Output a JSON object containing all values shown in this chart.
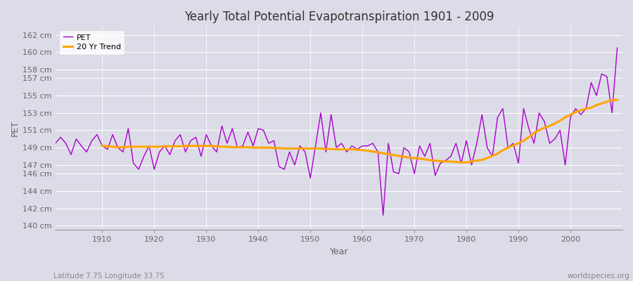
{
  "title": "Yearly Total Potential Evapotranspiration 1901 - 2009",
  "xlabel": "Year",
  "ylabel": "PET",
  "subtitle_left": "Latitude 7.75 Longitude 33.75",
  "subtitle_right": "worldspecies.org",
  "pet_color": "#aa00cc",
  "trend_color": "#FFA500",
  "background_color": "#dcdce8",
  "plot_bg_color": "#dcdce8",
  "ylim": [
    139.5,
    163
  ],
  "xlim": [
    1901,
    2010
  ],
  "yticks": [
    140,
    142,
    144,
    146,
    147,
    149,
    151,
    153,
    155,
    157,
    158,
    160,
    162
  ],
  "xticks": [
    1910,
    1920,
    1930,
    1940,
    1950,
    1960,
    1970,
    1980,
    1990,
    2000
  ],
  "years": [
    1901,
    1902,
    1903,
    1904,
    1905,
    1906,
    1907,
    1908,
    1909,
    1910,
    1911,
    1912,
    1913,
    1914,
    1915,
    1916,
    1917,
    1918,
    1919,
    1920,
    1921,
    1922,
    1923,
    1924,
    1925,
    1926,
    1927,
    1928,
    1929,
    1930,
    1931,
    1932,
    1933,
    1934,
    1935,
    1936,
    1937,
    1938,
    1939,
    1940,
    1941,
    1942,
    1943,
    1944,
    1945,
    1946,
    1947,
    1948,
    1949,
    1950,
    1951,
    1952,
    1953,
    1954,
    1955,
    1956,
    1957,
    1958,
    1959,
    1960,
    1961,
    1962,
    1963,
    1964,
    1965,
    1966,
    1967,
    1968,
    1969,
    1970,
    1971,
    1972,
    1973,
    1974,
    1975,
    1976,
    1977,
    1978,
    1979,
    1980,
    1981,
    1982,
    1983,
    1984,
    1985,
    1986,
    1987,
    1988,
    1989,
    1990,
    1991,
    1992,
    1993,
    1994,
    1995,
    1996,
    1997,
    1998,
    1999,
    2000,
    2001,
    2002,
    2003,
    2004,
    2005,
    2006,
    2007,
    2008,
    2009
  ],
  "pet_values": [
    149.5,
    150.2,
    149.5,
    148.2,
    150.0,
    149.2,
    148.5,
    149.8,
    150.5,
    149.2,
    148.8,
    150.5,
    149.0,
    148.5,
    151.2,
    147.2,
    146.5,
    148.0,
    149.2,
    146.5,
    148.5,
    149.2,
    148.2,
    149.8,
    150.5,
    148.5,
    149.8,
    150.2,
    148.0,
    150.5,
    149.2,
    148.5,
    151.5,
    149.5,
    151.2,
    149.0,
    149.2,
    150.8,
    149.2,
    151.2,
    151.0,
    149.5,
    149.8,
    146.8,
    146.5,
    148.5,
    147.0,
    149.2,
    148.5,
    145.5,
    149.2,
    153.0,
    148.5,
    152.8,
    149.0,
    149.5,
    148.5,
    149.2,
    148.8,
    149.2,
    149.2,
    149.5,
    148.5,
    141.2,
    149.5,
    146.2,
    146.0,
    149.0,
    148.5,
    146.0,
    149.2,
    148.0,
    149.5,
    145.8,
    147.2,
    147.5,
    148.0,
    149.5,
    147.2,
    149.8,
    147.0,
    149.5,
    152.8,
    149.0,
    148.0,
    152.5,
    153.5,
    149.0,
    149.5,
    147.2,
    153.5,
    151.2,
    149.5,
    153.0,
    152.0,
    149.5,
    150.0,
    151.0,
    147.0,
    152.5,
    153.5,
    152.8,
    153.5,
    156.5,
    155.0,
    157.5,
    157.2,
    153.0,
    160.5
  ],
  "trend_start_year": 1910,
  "trend_values": [
    149.2,
    149.15,
    149.1,
    149.05,
    149.05,
    149.1,
    149.1,
    149.1,
    149.1,
    149.1,
    149.1,
    149.1,
    149.15,
    149.15,
    149.15,
    149.15,
    149.2,
    149.2,
    149.2,
    149.2,
    149.2,
    149.2,
    149.15,
    149.1,
    149.1,
    149.05,
    149.05,
    149.05,
    149.05,
    149.0,
    149.0,
    149.0,
    149.0,
    148.95,
    148.95,
    148.9,
    148.9,
    148.9,
    148.9,
    148.9,
    148.9,
    148.9,
    148.9,
    148.85,
    148.85,
    148.8,
    148.8,
    148.8,
    148.8,
    148.75,
    148.7,
    148.65,
    148.55,
    148.45,
    148.35,
    148.25,
    148.15,
    148.05,
    147.95,
    147.85,
    147.8,
    147.75,
    147.65,
    147.55,
    147.5,
    147.45,
    147.4,
    147.4,
    147.35,
    147.3,
    147.3,
    147.4,
    147.5,
    147.6,
    147.8,
    148.05,
    148.3,
    148.7,
    149.0,
    149.25,
    149.5,
    149.8,
    150.2,
    150.7,
    151.0,
    151.3,
    151.5,
    151.8,
    152.1,
    152.5,
    152.8,
    153.1,
    153.3,
    153.5,
    153.6,
    153.9,
    154.1,
    154.3,
    154.5,
    154.5
  ]
}
